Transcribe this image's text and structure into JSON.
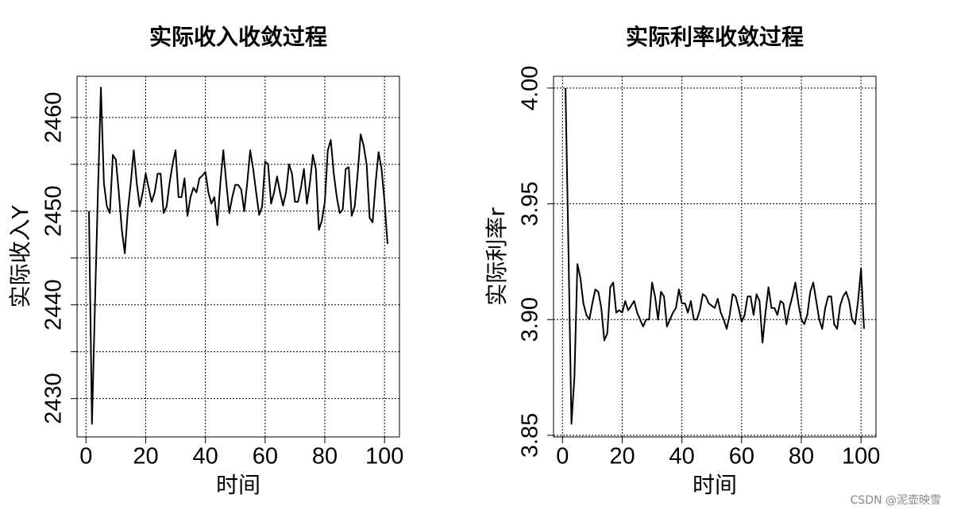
{
  "chart_data": [
    {
      "type": "line",
      "title": "实际收入收敛过程",
      "x_label": "时间",
      "y_label": "实际收入Y",
      "x": [
        1,
        2,
        3,
        4,
        5,
        6,
        7,
        8,
        9,
        10,
        11,
        12,
        13,
        14,
        15,
        16,
        17,
        18,
        19,
        20,
        21,
        22,
        23,
        24,
        25,
        26,
        27,
        28,
        29,
        30,
        31,
        32,
        33,
        34,
        35,
        36,
        37,
        38,
        39,
        40,
        41,
        42,
        43,
        44,
        45,
        46,
        47,
        48,
        49,
        50,
        51,
        52,
        53,
        54,
        55,
        56,
        57,
        58,
        59,
        60,
        61,
        62,
        63,
        64,
        65,
        66,
        67,
        68,
        69,
        70,
        71,
        72,
        73,
        74,
        75,
        76,
        77,
        78,
        79,
        80,
        81,
        82,
        83,
        84,
        85,
        86,
        87,
        88,
        89,
        90,
        91,
        92,
        93,
        94,
        95,
        96,
        97,
        98,
        99,
        100,
        101
      ],
      "series": [
        {
          "color": "#000000",
          "values": [
            2450,
            2427.3,
            2440,
            2452,
            2463.2,
            2453,
            2450.5,
            2449.8,
            2456,
            2455.5,
            2452,
            2448,
            2445.5,
            2450,
            2453,
            2456.5,
            2453,
            2450.5,
            2452,
            2454,
            2452.5,
            2451,
            2452,
            2454,
            2454,
            2449.8,
            2450.5,
            2453,
            2455,
            2456.5,
            2451.5,
            2451.5,
            2453.5,
            2449.5,
            2451.5,
            2452.5,
            2452,
            2453.5,
            2453.8,
            2454.2,
            2452,
            2450.8,
            2451.5,
            2448.5,
            2453,
            2456.5,
            2453,
            2449.8,
            2451.5,
            2452.8,
            2452.8,
            2452.3,
            2450,
            2453,
            2456.5,
            2454.5,
            2452,
            2449.6,
            2450.5,
            2455.3,
            2455,
            2450.8,
            2452,
            2453.7,
            2452,
            2450.6,
            2452,
            2455,
            2454,
            2451,
            2451,
            2452.5,
            2454.5,
            2450.8,
            2453,
            2456,
            2454.5,
            2448,
            2449,
            2451,
            2456.5,
            2457.6,
            2454,
            2451.5,
            2449.8,
            2450.2,
            2454.5,
            2454.7,
            2449.5,
            2450.5,
            2454,
            2458.2,
            2457,
            2455,
            2449.3,
            2448.8,
            2453,
            2456.3,
            2454.5,
            2451,
            2446.5
          ]
        }
      ],
      "xlim": [
        -3,
        105
      ],
      "ylim": [
        2425.9,
        2464.4
      ],
      "xticks": [
        0,
        20,
        40,
        60,
        80,
        100
      ],
      "yticks": [
        2430,
        2440,
        2450,
        2460
      ],
      "y_minor_ticks": [
        2435,
        2445,
        2455
      ],
      "grid": true
    },
    {
      "type": "line",
      "title": "实际利率收敛过程",
      "x_label": "时间",
      "y_label": "实际利率r",
      "x": [
        1,
        2,
        3,
        4,
        5,
        6,
        7,
        8,
        9,
        10,
        11,
        12,
        13,
        14,
        15,
        16,
        17,
        18,
        19,
        20,
        21,
        22,
        23,
        24,
        25,
        26,
        27,
        28,
        29,
        30,
        31,
        32,
        33,
        34,
        35,
        36,
        37,
        38,
        39,
        40,
        41,
        42,
        43,
        44,
        45,
        46,
        47,
        48,
        49,
        50,
        51,
        52,
        53,
        54,
        55,
        56,
        57,
        58,
        59,
        60,
        61,
        62,
        63,
        64,
        65,
        66,
        67,
        68,
        69,
        70,
        71,
        72,
        73,
        74,
        75,
        76,
        77,
        78,
        79,
        80,
        81,
        82,
        83,
        84,
        85,
        86,
        87,
        88,
        89,
        90,
        91,
        92,
        93,
        94,
        95,
        96,
        97,
        98,
        99,
        100,
        101
      ],
      "series": [
        {
          "color": "#000000",
          "values": [
            4.0,
            3.93,
            3.855,
            3.875,
            3.924,
            3.918,
            3.907,
            3.902,
            3.9,
            3.907,
            3.913,
            3.912,
            3.905,
            3.891,
            3.894,
            3.914,
            3.916,
            3.903,
            3.904,
            3.903,
            3.908,
            3.904,
            3.906,
            3.908,
            3.903,
            3.9,
            3.897,
            3.9,
            3.9,
            3.916,
            3.91,
            3.9,
            3.912,
            3.91,
            3.897,
            3.9,
            3.903,
            3.905,
            3.913,
            3.907,
            3.907,
            3.903,
            3.908,
            3.9,
            3.9,
            3.904,
            3.911,
            3.91,
            3.907,
            3.906,
            3.905,
            3.909,
            3.903,
            3.9,
            3.896,
            3.902,
            3.911,
            3.91,
            3.905,
            3.899,
            3.902,
            3.91,
            3.91,
            3.902,
            3.911,
            3.908,
            3.89,
            3.903,
            3.914,
            3.905,
            3.905,
            3.902,
            3.908,
            3.907,
            3.898,
            3.905,
            3.91,
            3.916,
            3.907,
            3.9,
            3.898,
            3.902,
            3.912,
            3.916,
            3.908,
            3.9,
            3.896,
            3.905,
            3.91,
            3.91,
            3.898,
            3.896,
            3.906,
            3.91,
            3.912,
            3.908,
            3.9,
            3.898,
            3.908,
            3.922,
            3.896
          ]
        }
      ],
      "xlim": [
        -3,
        105
      ],
      "ylim": [
        3.8493,
        4.0051
      ],
      "xticks": [
        0,
        20,
        40,
        60,
        80,
        100
      ],
      "yticks": [
        3.85,
        {
          "value": 3.9,
          "label": "3.90"
        },
        3.95,
        {
          "value": 4,
          "label": "4.00"
        }
      ],
      "grid": true
    }
  ],
  "watermark": "CSDN @泥壶映雪"
}
